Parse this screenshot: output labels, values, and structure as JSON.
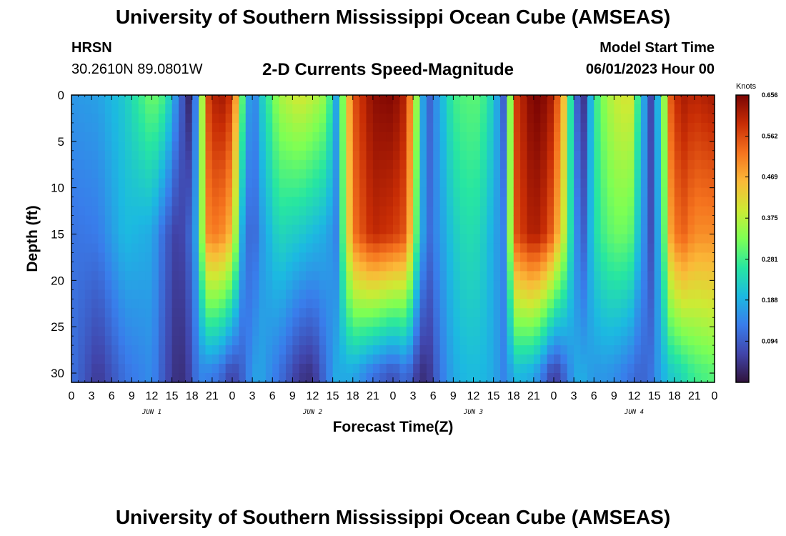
{
  "header": {
    "main_title": "University of Southern Mississippi Ocean Cube (AMSEAS)",
    "station_name": "HRSN",
    "station_coords": "30.2610N  89.0801W",
    "plot_title": "2-D Currents Speed-Magnitude",
    "model_start_label": "Model Start Time",
    "model_start_value": "06/01/2023 Hour 00"
  },
  "footer": {
    "title": "University of Southern Mississippi Ocean Cube (AMSEAS)"
  },
  "chart_data": {
    "type": "heatmap",
    "title": "2-D Currents Speed-Magnitude",
    "xlabel": "Forecast Time(Z)",
    "ylabel": "Depth (ft)",
    "x_unit": "hours since 06/01/2023 00Z",
    "xlim": [
      0,
      96
    ],
    "ylim": [
      0,
      31
    ],
    "y_inverted": true,
    "x_ticks": [
      0,
      3,
      6,
      9,
      12,
      15,
      18,
      21,
      24,
      27,
      30,
      33,
      36,
      39,
      42,
      45,
      48,
      51,
      54,
      57,
      60,
      63,
      66,
      69,
      72,
      75,
      78,
      81,
      84,
      87,
      90,
      93,
      96
    ],
    "x_tick_labels": [
      "0",
      "3",
      "6",
      "9",
      "12",
      "15",
      "18",
      "21",
      "0",
      "3",
      "6",
      "9",
      "12",
      "15",
      "18",
      "21",
      "0",
      "3",
      "6",
      "9",
      "12",
      "15",
      "18",
      "21",
      "0",
      "3",
      "6",
      "9",
      "12",
      "15",
      "18",
      "21",
      "0"
    ],
    "y_ticks": [
      0,
      5,
      10,
      15,
      20,
      25,
      30
    ],
    "y_tick_labels": [
      "0",
      "5",
      "10",
      "15",
      "20",
      "25",
      "30"
    ],
    "day_labels": [
      {
        "x": 12,
        "text": "JUN 1"
      },
      {
        "x": 36,
        "text": "JUN 2"
      },
      {
        "x": 60,
        "text": "JUN 3"
      },
      {
        "x": 84,
        "text": "JUN 4"
      }
    ],
    "colorbar": {
      "label": "Knots",
      "min": 0,
      "max": 0.656,
      "ticks": [
        0.094,
        0.188,
        0.281,
        0.375,
        0.469,
        0.562,
        0.656
      ],
      "tick_labels": [
        "0.094",
        "0.188",
        "0.281",
        "0.375",
        "0.469",
        "0.562",
        "0.656"
      ],
      "colormap": "turbo"
    },
    "speed_profile_knots": {
      "hours": [
        0,
        4,
        8,
        12,
        14,
        16,
        17.5,
        19,
        20,
        22,
        24,
        25.5,
        27,
        28,
        31,
        34,
        36,
        38,
        39.5,
        42,
        45,
        48,
        50,
        51.5,
        53,
        55,
        57,
        59,
        61,
        63,
        64.5,
        66.5,
        69,
        71,
        72,
        74,
        75,
        76.5,
        78,
        80,
        82,
        83.5,
        85,
        86.5,
        88,
        89.5,
        91,
        93,
        96
      ],
      "surface": [
        0.16,
        0.17,
        0.22,
        0.32,
        0.28,
        0.12,
        0.03,
        0.18,
        0.55,
        0.63,
        0.58,
        0.3,
        0.1,
        0.2,
        0.36,
        0.4,
        0.38,
        0.34,
        0.18,
        0.55,
        0.64,
        0.65,
        0.6,
        0.35,
        0.08,
        0.18,
        0.28,
        0.3,
        0.3,
        0.22,
        0.1,
        0.58,
        0.66,
        0.64,
        0.6,
        0.4,
        0.12,
        0.05,
        0.26,
        0.36,
        0.4,
        0.4,
        0.22,
        0.07,
        0.25,
        0.55,
        0.62,
        0.6,
        0.62
      ],
      "mid_depth_15ft": [
        0.12,
        0.13,
        0.2,
        0.18,
        0.1,
        0.05,
        0.1,
        0.2,
        0.5,
        0.52,
        0.45,
        0.18,
        0.08,
        0.15,
        0.24,
        0.22,
        0.2,
        0.18,
        0.14,
        0.52,
        0.6,
        0.58,
        0.55,
        0.3,
        0.1,
        0.16,
        0.22,
        0.25,
        0.24,
        0.18,
        0.14,
        0.56,
        0.62,
        0.58,
        0.52,
        0.34,
        0.16,
        0.1,
        0.24,
        0.3,
        0.32,
        0.3,
        0.18,
        0.08,
        0.22,
        0.48,
        0.55,
        0.5,
        0.5
      ],
      "bottom_30ft": [
        0.12,
        0.05,
        0.12,
        0.15,
        0.08,
        0.03,
        0.06,
        0.14,
        0.14,
        0.12,
        0.06,
        0.1,
        0.16,
        0.18,
        0.12,
        0.05,
        0.04,
        0.12,
        0.18,
        0.18,
        0.12,
        0.08,
        0.12,
        0.06,
        0.03,
        0.12,
        0.18,
        0.2,
        0.2,
        0.18,
        0.14,
        0.2,
        0.18,
        0.1,
        0.05,
        0.12,
        0.18,
        0.18,
        0.16,
        0.16,
        0.14,
        0.12,
        0.1,
        0.12,
        0.18,
        0.22,
        0.24,
        0.28,
        0.3
      ]
    }
  }
}
